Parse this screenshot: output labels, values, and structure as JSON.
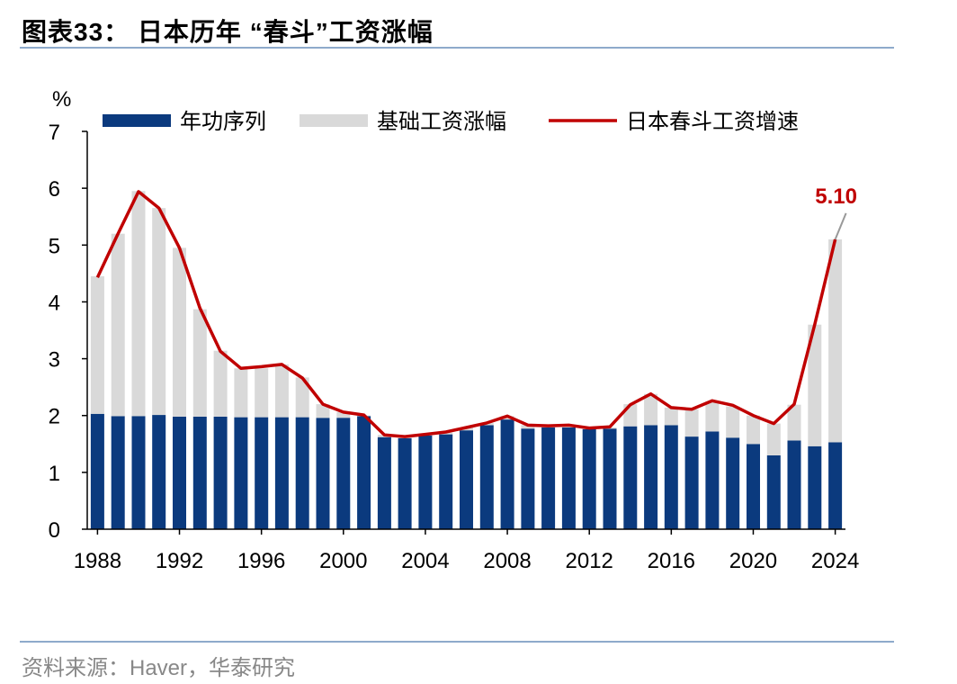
{
  "title": "图表33： 日本历年 “春斗”工资涨幅",
  "source": "资料来源：Haver，华泰研究",
  "colors": {
    "seniority": "#0b3a7e",
    "base": "#d9d9d9",
    "line": "#c00000",
    "rule": "#8eaacb"
  },
  "chart_data": {
    "type": "bar",
    "stacked": true,
    "ylabel": "%",
    "ylim": [
      0,
      7
    ],
    "yticks": [
      0,
      1,
      2,
      3,
      4,
      5,
      6,
      7
    ],
    "x": [
      1988,
      1989,
      1990,
      1991,
      1992,
      1993,
      1994,
      1995,
      1996,
      1997,
      1998,
      1999,
      2000,
      2001,
      2002,
      2003,
      2004,
      2005,
      2006,
      2007,
      2008,
      2009,
      2010,
      2011,
      2012,
      2013,
      2014,
      2015,
      2016,
      2017,
      2018,
      2019,
      2020,
      2021,
      2022,
      2023,
      2024
    ],
    "xticks": [
      1988,
      1992,
      1996,
      2000,
      2004,
      2008,
      2012,
      2016,
      2020,
      2024
    ],
    "legend_position": "top",
    "series": [
      {
        "name": "年功序列",
        "kind": "bar",
        "values": [
          2.03,
          1.99,
          1.99,
          2.01,
          1.98,
          1.98,
          1.98,
          1.97,
          1.97,
          1.97,
          1.97,
          1.96,
          1.96,
          1.99,
          1.62,
          1.6,
          1.65,
          1.67,
          1.74,
          1.83,
          1.93,
          1.77,
          1.79,
          1.79,
          1.76,
          1.77,
          1.81,
          1.83,
          1.83,
          1.63,
          1.72,
          1.61,
          1.5,
          1.3,
          1.56,
          1.46,
          1.53
        ]
      },
      {
        "name": "基础工资涨幅",
        "kind": "bar",
        "values": [
          2.42,
          3.21,
          3.96,
          3.64,
          2.97,
          1.89,
          1.16,
          0.86,
          0.86,
          0.93,
          0.7,
          0.24,
          0.1,
          0.01,
          0.04,
          0.03,
          0.03,
          0.03,
          0.05,
          0.04,
          0.06,
          0.06,
          0.03,
          0.04,
          0.02,
          0.02,
          0.39,
          0.55,
          0.31,
          0.48,
          0.53,
          0.55,
          0.5,
          0.56,
          0.63,
          2.14,
          3.57
        ]
      },
      {
        "name": "日本春斗工资增速",
        "kind": "line",
        "values": [
          4.43,
          5.2,
          5.94,
          5.65,
          4.95,
          3.89,
          3.13,
          2.83,
          2.86,
          2.9,
          2.66,
          2.2,
          2.06,
          2.01,
          1.66,
          1.63,
          1.67,
          1.71,
          1.79,
          1.87,
          1.99,
          1.83,
          1.82,
          1.83,
          1.78,
          1.8,
          2.19,
          2.38,
          2.14,
          2.11,
          2.26,
          2.18,
          2.0,
          1.86,
          2.2,
          3.6,
          5.1
        ]
      }
    ],
    "annotations": [
      {
        "text": "5.10",
        "x": 2024,
        "y": 5.1
      }
    ]
  }
}
